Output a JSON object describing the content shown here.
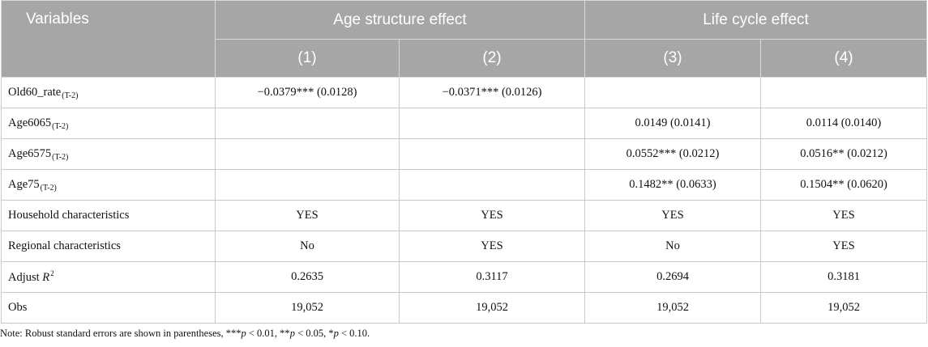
{
  "header": {
    "variables": "Variables",
    "group1": "Age structure effect",
    "group2": "Life cycle effect",
    "columns": [
      "(1)",
      "(2)",
      "(3)",
      "(4)"
    ]
  },
  "rows": [
    {
      "label": "Old60_rate",
      "sub": "(T-2)",
      "cells": [
        "−0.0379*** (0.0128)",
        "−0.0371*** (0.0126)",
        "",
        ""
      ]
    },
    {
      "label": "Age6065",
      "sub": "(T-2)",
      "cells": [
        "",
        "",
        "0.0149 (0.0141)",
        "0.0114 (0.0140)"
      ]
    },
    {
      "label": "Age6575",
      "sub": "(T-2)",
      "cells": [
        "",
        "",
        "0.0552*** (0.0212)",
        "0.0516** (0.0212)"
      ]
    },
    {
      "label": "Age75",
      "sub": "(T-2)",
      "cells": [
        "",
        "",
        "0.1482** (0.0633)",
        "0.1504** (0.0620)"
      ]
    },
    {
      "label": "Household characteristics",
      "cells": [
        "YES",
        "YES",
        "YES",
        "YES"
      ]
    },
    {
      "label": "Regional characteristics",
      "cells": [
        "No",
        "YES",
        "No",
        "YES"
      ]
    },
    {
      "label": "Adjust ",
      "label_italic": "R",
      "sup": "2",
      "cells": [
        "0.2635",
        "0.3117",
        "0.2694",
        "0.3181"
      ]
    },
    {
      "label": "Obs",
      "cells": [
        "19,052",
        "19,052",
        "19,052",
        "19,052"
      ]
    }
  ],
  "note": {
    "prefix": "Note: Robust standard errors are shown in parentheses, ***",
    "p1": "p",
    "t1": " < 0.01, **",
    "p2": "p",
    "t2": " < 0.05, *",
    "p3": "p",
    "t3": " < 0.10."
  }
}
